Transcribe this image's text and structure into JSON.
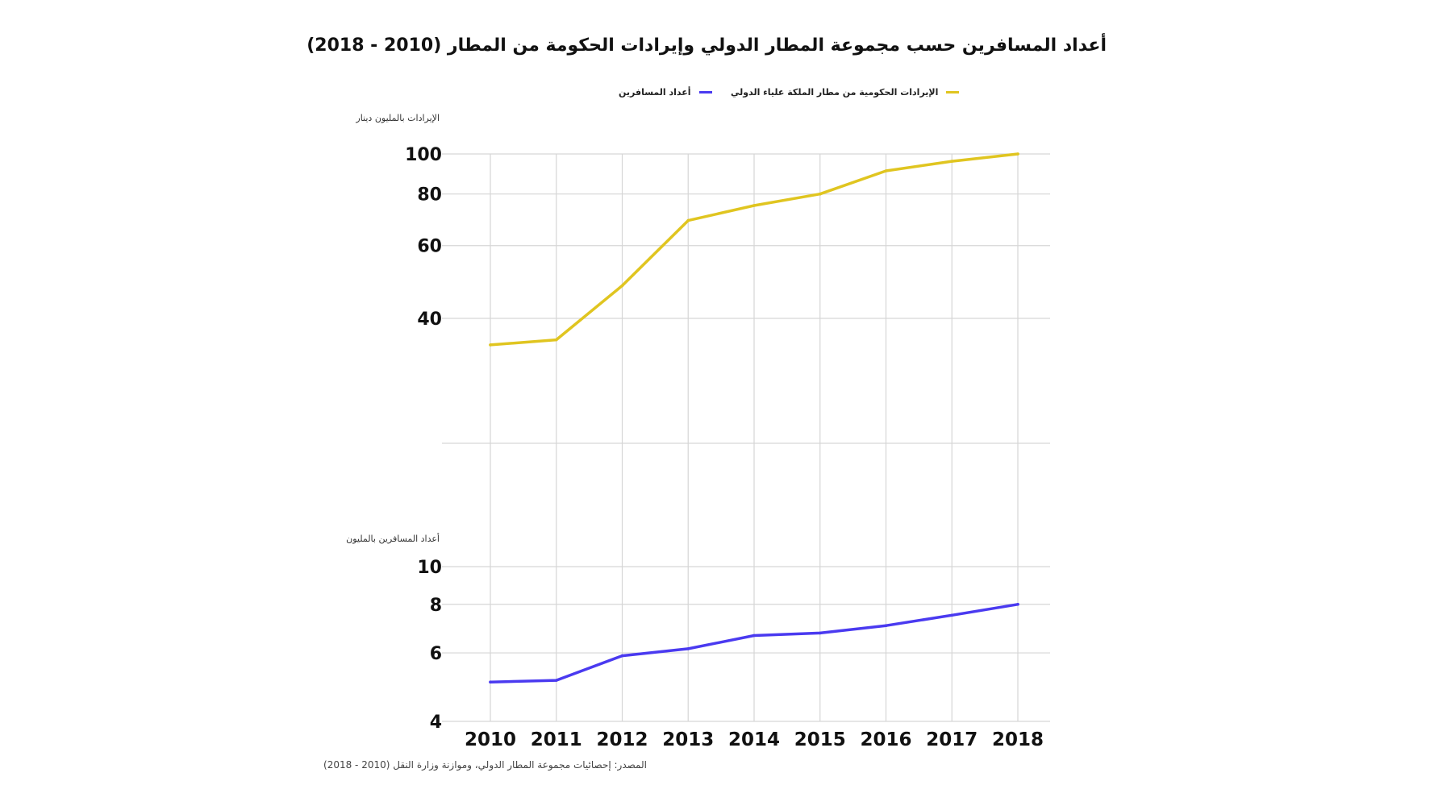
{
  "title": "أعداد المسافرين حسب مجموعة المطار الدولي وإيرادات الحكومة من المطار (2010 - 2018)",
  "legend": {
    "revenue_label": "الإيرادات الحكومية من مطار الملكة علياء الدولي",
    "passengers_label": "أعداد المسافرين"
  },
  "axis_titles": {
    "revenue": "الإيرادات بالمليون دينار",
    "passengers": "أعداد المسافرين بالمليون"
  },
  "source": "المصدر: إحصائيات مجموعة المطار الدولي، وموازنة وزارة النقل (2010 - 2018)",
  "colors": {
    "revenue": "#E0C520",
    "passengers": "#4A3AF0",
    "grid": "#D6D6D6"
  },
  "chart_data": [
    {
      "type": "line",
      "name": "revenue",
      "scale": "log",
      "x": [
        "2010",
        "2011",
        "2012",
        "2013",
        "2014",
        "2015",
        "2016",
        "2017",
        "2018"
      ],
      "series": [
        {
          "name": "الإيرادات الحكومية من مطار الملكة علياء الدولي",
          "values": [
            34.5,
            35.5,
            48,
            69,
            75,
            80,
            91,
            96,
            100
          ]
        }
      ],
      "yticks": [
        40,
        60,
        80,
        100
      ],
      "ylabel": "الإيرادات بالمليون دينار",
      "grid": true
    },
    {
      "type": "line",
      "name": "passengers",
      "scale": "log",
      "x": [
        "2010",
        "2011",
        "2012",
        "2013",
        "2014",
        "2015",
        "2016",
        "2017",
        "2018"
      ],
      "series": [
        {
          "name": "أعداد المسافرين",
          "values": [
            5.05,
            5.1,
            5.9,
            6.15,
            6.65,
            6.75,
            7.05,
            7.5,
            8.0
          ]
        }
      ],
      "yticks": [
        4,
        6,
        8,
        10
      ],
      "ylabel": "أعداد المسافرين بالمليون",
      "grid": true
    }
  ]
}
